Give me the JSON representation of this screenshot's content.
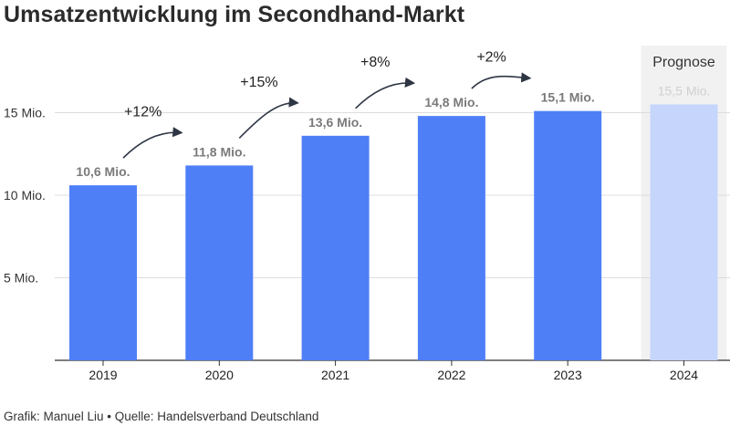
{
  "title": "Umsatzentwicklung im Secondhand-Markt",
  "footer": "Grafik: Manuel Liu • Quelle: Handelsverband Deutschland",
  "colors": {
    "bar": "#4f7ff7",
    "forecast_bar": "#c5d5fc",
    "forecast_bg": "#f1f1f1",
    "forecast_label": "#d0d0d0",
    "label": "#7a7a7a",
    "grid": "#dddddd",
    "arrow": "#2e3644"
  },
  "chart_data": {
    "type": "bar",
    "categories": [
      "2019",
      "2020",
      "2021",
      "2022",
      "2023",
      "2024"
    ],
    "values": [
      10.6,
      11.8,
      13.6,
      14.8,
      15.1,
      15.5
    ],
    "data_labels": [
      "10,6 Mio.",
      "11,8 Mio.",
      "13,6 Mio.",
      "14,8 Mio.",
      "15,1 Mio.",
      "15,5 Mio."
    ],
    "forecast_index": 5,
    "forecast_label": "Prognose",
    "growth": [
      "+12%",
      "+15%",
      "+8%",
      "+2%"
    ],
    "yticks": [
      5,
      10,
      15
    ],
    "ytick_labels": [
      "5 Mio.",
      "10 Mio.",
      "15 Mio."
    ],
    "ylim": [
      0,
      15.5
    ],
    "grid": true
  }
}
